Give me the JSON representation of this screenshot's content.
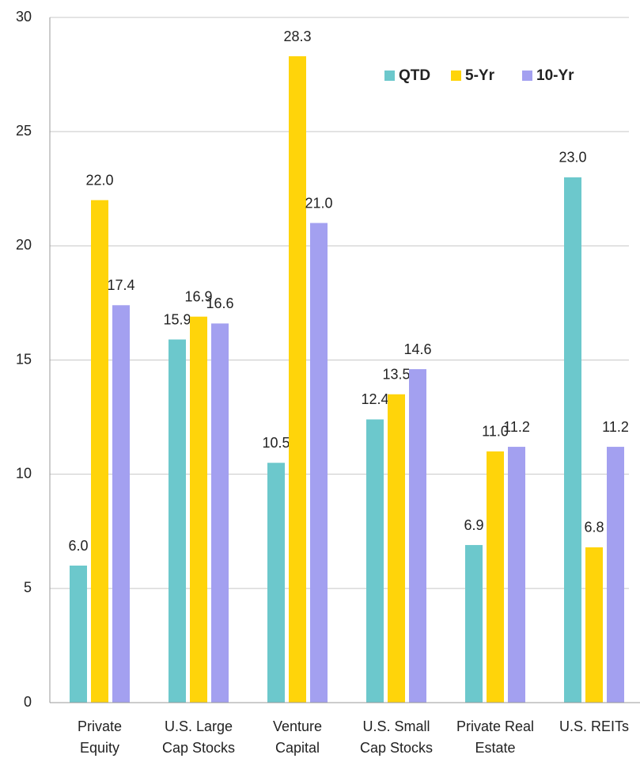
{
  "chart_data": {
    "type": "bar",
    "categories": [
      "Private\nEquity",
      "U.S. Large\nCap Stocks",
      "Venture\nCapital",
      "U.S. Small\nCap Stocks",
      "Private Real\nEstate",
      "U.S. REITs"
    ],
    "series": [
      {
        "name": "QTD",
        "color": "#6cc8cc",
        "values": [
          6.0,
          15.9,
          10.5,
          12.4,
          6.9,
          23.0
        ],
        "value_labels": [
          "6.0",
          "15.9",
          "10.5",
          "12.4",
          "6.9",
          "23.0"
        ]
      },
      {
        "name": "5-Yr",
        "color": "#ffd40a",
        "values": [
          22.0,
          16.9,
          28.3,
          13.5,
          11.0,
          6.8
        ],
        "value_labels": [
          "22.0",
          "16.9",
          "28.3",
          "13.5",
          "11.0",
          "6.8"
        ]
      },
      {
        "name": "10-Yr",
        "color": "#a3a0f0",
        "values": [
          17.4,
          16.6,
          21.0,
          14.6,
          11.2,
          11.2
        ],
        "value_labels": [
          "17.4",
          "16.6",
          "21.0",
          "14.6",
          "11.2",
          "11.2"
        ]
      }
    ],
    "ylim": [
      0,
      30
    ],
    "yticks": [
      0,
      5,
      10,
      15,
      20,
      25,
      30
    ],
    "grid": true,
    "legend": "top-right"
  }
}
